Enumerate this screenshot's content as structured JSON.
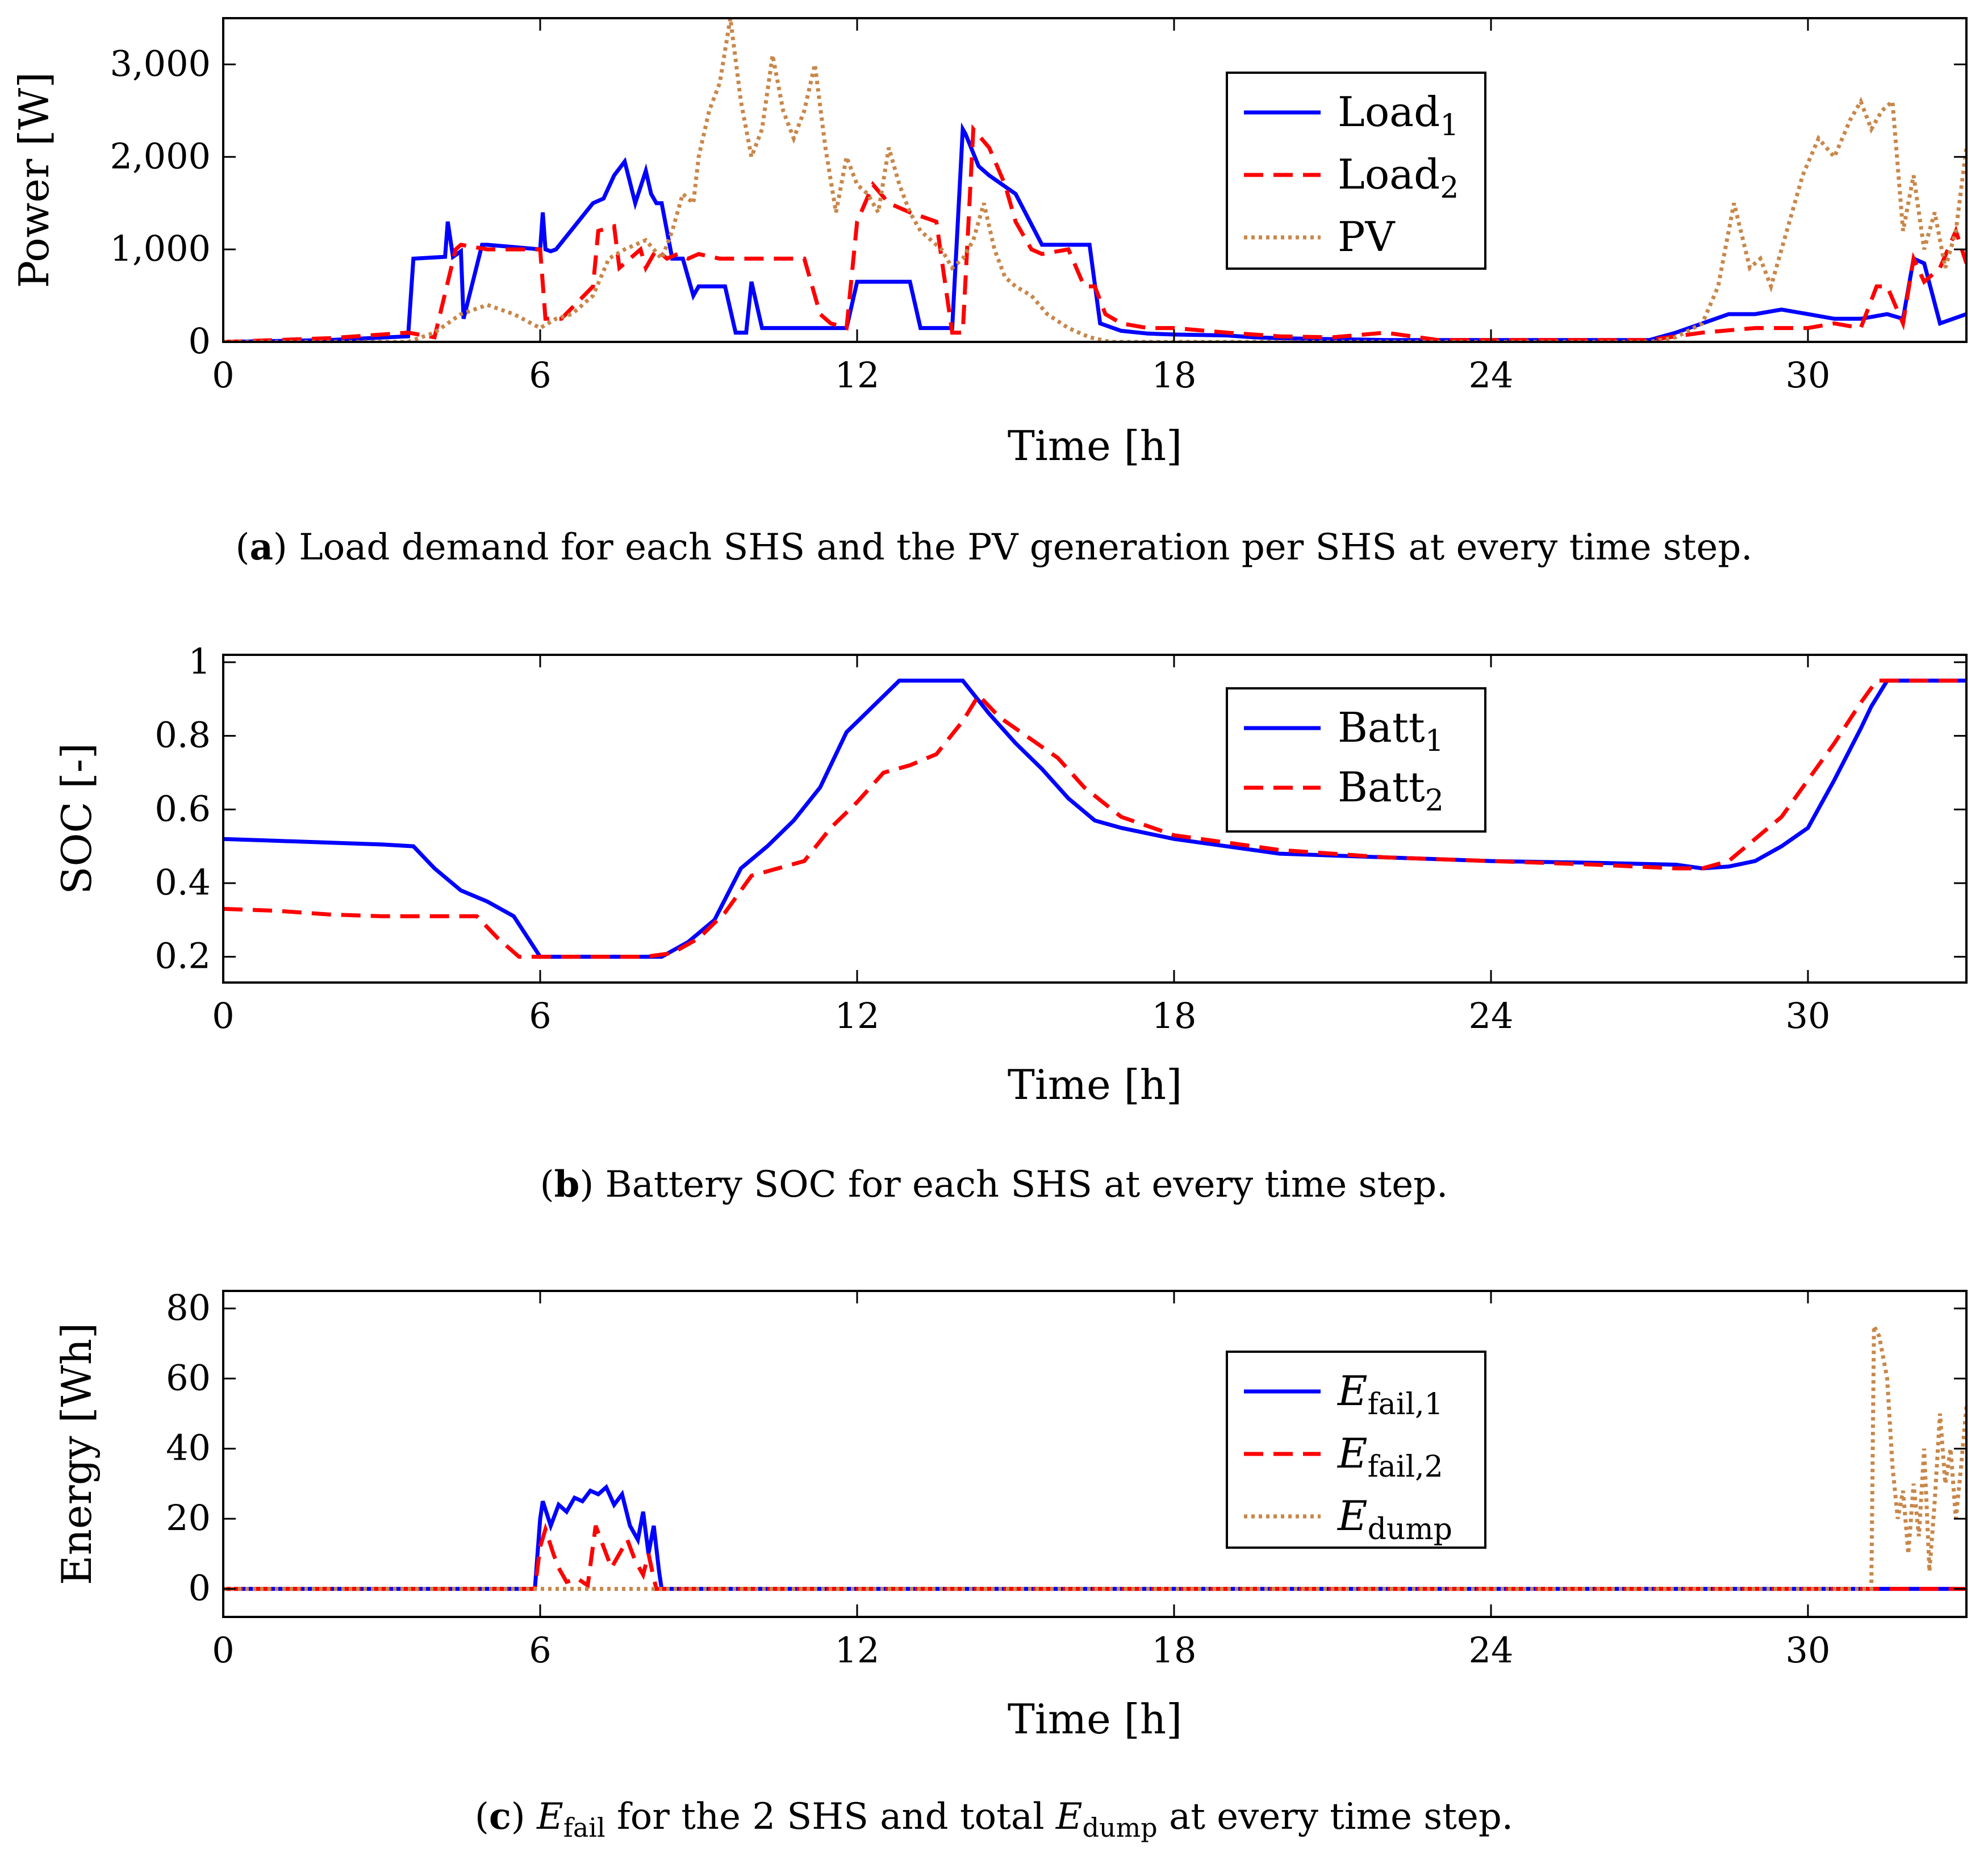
{
  "chart_data": [
    {
      "id": "a",
      "type": "line",
      "xlabel": "Time [h]",
      "ylabel": "Power [W]",
      "xlim": [
        0,
        33
      ],
      "ylim": [
        0,
        3500
      ],
      "xticks": [
        0,
        6,
        12,
        18,
        24,
        30
      ],
      "yticks": [
        0,
        1000,
        2000,
        3000
      ],
      "ytick_labels": [
        "0",
        "1,000",
        "2,000",
        "3,000"
      ],
      "legend_position": "top-right",
      "caption": {
        "label": "a",
        "text": ") Load demand for each SHS and the PV generation per SHS at every time step."
      },
      "series": [
        {
          "name": "Load",
          "sub": "1",
          "color": "#0000ff",
          "style": "solid",
          "x": [
            0,
            2,
            3.5,
            3.6,
            4.2,
            4.25,
            4.35,
            4.5,
            4.55,
            4.9,
            5,
            6,
            6.05,
            6.1,
            6.2,
            6.3,
            7,
            7.2,
            7.4,
            7.6,
            7.8,
            8,
            8.1,
            8.2,
            8.3,
            8.5,
            8.7,
            8.9,
            9,
            9.5,
            9.7,
            9.9,
            10,
            10.2,
            11,
            11.5,
            11.8,
            12,
            12.5,
            13,
            13.2,
            13.8,
            14,
            14.05,
            14.3,
            14.5,
            15,
            15.5,
            16,
            16.2,
            16.4,
            16.6,
            17,
            17.5,
            18,
            19,
            19.5,
            20,
            21,
            22,
            24,
            25,
            26,
            27,
            27.5,
            28,
            28.5,
            29,
            29.5,
            30,
            30.5,
            31,
            31.5,
            31.8,
            32,
            32.2,
            32.5,
            33
          ],
          "y": [
            0,
            20,
            60,
            900,
            920,
            1300,
            920,
            980,
            250,
            1050,
            1050,
            1000,
            1400,
            1000,
            980,
            1000,
            1500,
            1550,
            1800,
            1950,
            1500,
            1850,
            1600,
            1500,
            1500,
            900,
            900,
            500,
            600,
            600,
            100,
            100,
            650,
            150,
            150,
            150,
            150,
            650,
            650,
            650,
            150,
            150,
            2300,
            2250,
            1900,
            1800,
            1600,
            1050,
            1050,
            1050,
            1050,
            200,
            120,
            90,
            80,
            70,
            50,
            40,
            30,
            20,
            20,
            20,
            20,
            20,
            100,
            200,
            300,
            300,
            350,
            300,
            250,
            250,
            300,
            250,
            900,
            850,
            200,
            300
          ]
        },
        {
          "name": "Load",
          "sub": "2",
          "color": "#ff0000",
          "style": "dashed",
          "x": [
            0,
            2,
            3.5,
            4,
            4.4,
            4.5,
            5,
            5.3,
            5.8,
            6,
            6.1,
            6.4,
            7,
            7.1,
            7.4,
            7.5,
            7.9,
            8,
            8.2,
            8.4,
            8.6,
            8.8,
            9,
            9.4,
            10,
            10.5,
            11,
            11.3,
            11.5,
            11.8,
            12,
            12.3,
            12.6,
            13,
            13.5,
            13.8,
            14,
            14.2,
            14.5,
            14.8,
            15,
            15.3,
            15.5,
            16,
            16.3,
            16.5,
            16.7,
            17,
            17.5,
            18,
            19,
            20,
            21,
            22,
            23,
            24,
            25,
            26,
            27,
            28,
            29,
            30,
            30.5,
            31,
            31.3,
            31.5,
            31.8,
            32,
            32.2,
            32.5,
            32.8,
            33
          ],
          "y": [
            0,
            40,
            100,
            50,
            1000,
            1050,
            1000,
            1000,
            1000,
            1000,
            250,
            250,
            600,
            1200,
            1250,
            800,
            1000,
            800,
            1000,
            900,
            950,
            900,
            950,
            900,
            900,
            900,
            900,
            300,
            200,
            150,
            1300,
            1700,
            1500,
            1400,
            1300,
            100,
            100,
            2300,
            2100,
            1700,
            1300,
            1000,
            950,
            1000,
            600,
            600,
            300,
            200,
            150,
            150,
            100,
            60,
            50,
            100,
            20,
            20,
            20,
            20,
            20,
            100,
            150,
            150,
            200,
            150,
            600,
            600,
            200,
            900,
            650,
            800,
            1200,
            850
          ]
        },
        {
          "name": "PV",
          "sub": "",
          "color": "#c8874a",
          "style": "dotted",
          "x": [
            0,
            3,
            3.5,
            4,
            4.5,
            5,
            5.5,
            6,
            6.3,
            6.6,
            7,
            7.3,
            7.6,
            8,
            8.3,
            8.5,
            8.7,
            8.9,
            9,
            9.2,
            9.4,
            9.6,
            9.8,
            10,
            10.2,
            10.4,
            10.6,
            10.8,
            11,
            11.2,
            11.4,
            11.6,
            11.8,
            12,
            12.2,
            12.4,
            12.6,
            12.8,
            13,
            13.2,
            13.4,
            13.6,
            13.8,
            14,
            14.2,
            14.4,
            14.6,
            14.8,
            15,
            15.3,
            15.6,
            16,
            16.4,
            16.8,
            17.2,
            18,
            20,
            24,
            27,
            27.5,
            28,
            28.3,
            28.6,
            28.9,
            29.1,
            29.3,
            29.6,
            29.9,
            30.2,
            30.5,
            30.8,
            31,
            31.2,
            31.4,
            31.6,
            31.8,
            32,
            32.2,
            32.4,
            32.6,
            32.8,
            33
          ],
          "y": [
            0,
            0,
            0,
            100,
            300,
            400,
            300,
            150,
            250,
            300,
            500,
            900,
            1000,
            1100,
            900,
            1200,
            1600,
            1500,
            2000,
            2500,
            2800,
            3500,
            2600,
            2000,
            2300,
            3100,
            2500,
            2200,
            2500,
            3000,
            2100,
            1400,
            2000,
            1700,
            1600,
            1400,
            2100,
            1700,
            1400,
            1200,
            1100,
            1000,
            800,
            900,
            1100,
            1500,
            1000,
            700,
            600,
            500,
            300,
            150,
            50,
            0,
            0,
            0,
            0,
            0,
            0,
            50,
            200,
            600,
            1500,
            800,
            900,
            600,
            1200,
            1800,
            2200,
            2000,
            2400,
            2600,
            2300,
            2500,
            2600,
            1200,
            1800,
            1000,
            1400,
            800,
            1200,
            2100
          ]
        }
      ]
    },
    {
      "id": "b",
      "type": "line",
      "xlabel": "Time [h]",
      "ylabel": "SOC [-]",
      "xlim": [
        0,
        33
      ],
      "ylim": [
        0.13,
        1.02
      ],
      "xticks": [
        0,
        6,
        12,
        18,
        24,
        30
      ],
      "yticks": [
        0.2,
        0.4,
        0.6,
        0.8,
        1
      ],
      "ytick_labels": [
        "0.2",
        "0.4",
        "0.6",
        "0.8",
        "1"
      ],
      "legend_position": "top-right",
      "caption": {
        "label": "b",
        "text": ") Battery SOC for each SHS at every time step."
      },
      "series": [
        {
          "name": "Batt",
          "sub": "1",
          "color": "#0000ff",
          "style": "solid",
          "x": [
            0,
            1,
            2,
            3,
            3.6,
            4,
            4.5,
            5,
            5.5,
            6,
            7,
            8,
            8.3,
            8.8,
            9.3,
            9.8,
            10.3,
            10.8,
            11.3,
            11.8,
            12.3,
            12.8,
            13.3,
            13.8,
            14,
            14.5,
            15,
            15.5,
            16,
            16.5,
            17,
            18,
            19,
            20,
            22,
            24,
            26,
            27.5,
            28,
            28.5,
            29,
            29.5,
            30,
            30.5,
            31,
            31.2,
            31.5,
            32,
            32.5,
            33
          ],
          "y": [
            0.52,
            0.515,
            0.51,
            0.505,
            0.5,
            0.44,
            0.38,
            0.35,
            0.31,
            0.2,
            0.2,
            0.2,
            0.2,
            0.24,
            0.3,
            0.44,
            0.5,
            0.57,
            0.66,
            0.81,
            0.88,
            0.95,
            0.95,
            0.95,
            0.95,
            0.86,
            0.78,
            0.71,
            0.63,
            0.57,
            0.55,
            0.52,
            0.5,
            0.48,
            0.47,
            0.46,
            0.455,
            0.45,
            0.44,
            0.445,
            0.46,
            0.5,
            0.55,
            0.68,
            0.82,
            0.88,
            0.95,
            0.95,
            0.95,
            0.95
          ]
        },
        {
          "name": "Batt",
          "sub": "2",
          "color": "#ff0000",
          "style": "dashed",
          "x": [
            0,
            1,
            2,
            3,
            4,
            4.8,
            5.2,
            5.6,
            6,
            7,
            8,
            8.5,
            9,
            9.5,
            10,
            10.5,
            11,
            11.5,
            12,
            12.5,
            13,
            13.5,
            14,
            14.3,
            14.7,
            15.2,
            15.8,
            16.3,
            17,
            18,
            19,
            20,
            22,
            24,
            26,
            27.5,
            28,
            28.5,
            29,
            29.5,
            30,
            30.5,
            31,
            31.3,
            31.5,
            32,
            32.5,
            33
          ],
          "y": [
            0.33,
            0.325,
            0.315,
            0.31,
            0.31,
            0.31,
            0.25,
            0.2,
            0.2,
            0.2,
            0.2,
            0.21,
            0.25,
            0.32,
            0.42,
            0.44,
            0.46,
            0.55,
            0.62,
            0.7,
            0.72,
            0.75,
            0.84,
            0.91,
            0.85,
            0.8,
            0.74,
            0.66,
            0.58,
            0.53,
            0.51,
            0.49,
            0.47,
            0.46,
            0.45,
            0.44,
            0.44,
            0.46,
            0.52,
            0.58,
            0.68,
            0.78,
            0.89,
            0.95,
            0.95,
            0.95,
            0.95,
            0.95
          ]
        }
      ]
    },
    {
      "id": "c",
      "type": "line",
      "xlabel": "Time [h]",
      "ylabel": "Energy [Wh]",
      "xlim": [
        0,
        33
      ],
      "ylim": [
        -8,
        85
      ],
      "xticks": [
        0,
        6,
        12,
        18,
        24,
        30
      ],
      "yticks": [
        0,
        20,
        40,
        60,
        80
      ],
      "ytick_labels": [
        "0",
        "20",
        "40",
        "60",
        "80"
      ],
      "legend_position": "top-right",
      "caption": {
        "label": "c",
        "text": "for the 2 SHS and total",
        "tail": "at every time step."
      },
      "series": [
        {
          "name": "E",
          "sub": "fail,1",
          "color": "#0000ff",
          "style": "solid",
          "x": [
            0,
            5.9,
            6,
            6.05,
            6.2,
            6.35,
            6.5,
            6.65,
            6.8,
            6.95,
            7.1,
            7.25,
            7.4,
            7.55,
            7.7,
            7.85,
            7.95,
            8.05,
            8.15,
            8.25,
            8.3,
            33
          ],
          "y": [
            0,
            0,
            20,
            25,
            18,
            24,
            22,
            26,
            25,
            28,
            27,
            29,
            24,
            27,
            18,
            14,
            22,
            10,
            18,
            5,
            0,
            0
          ]
        },
        {
          "name": "E",
          "sub": "fail,2",
          "color": "#ff0000",
          "style": "dashed",
          "x": [
            0,
            5.9,
            6,
            6.1,
            6.25,
            6.35,
            6.5,
            6.7,
            6.9,
            7.05,
            7.2,
            7.35,
            7.5,
            7.65,
            7.8,
            7.95,
            8.05,
            8.15,
            8.2,
            33
          ],
          "y": [
            0,
            0,
            12,
            17,
            10,
            6,
            2,
            3,
            1,
            18,
            12,
            6,
            10,
            14,
            8,
            4,
            10,
            3,
            0,
            0
          ]
        },
        {
          "name": "E",
          "sub": "dump",
          "color": "#c8874a",
          "style": "dotted",
          "x": [
            0,
            31.2,
            31.25,
            31.35,
            31.5,
            31.6,
            31.7,
            31.8,
            31.9,
            32,
            32.1,
            32.2,
            32.3,
            32.4,
            32.5,
            32.6,
            32.7,
            32.8,
            32.9,
            33
          ],
          "y": [
            0,
            0,
            75,
            72,
            60,
            35,
            20,
            28,
            10,
            30,
            15,
            40,
            5,
            25,
            50,
            30,
            40,
            20,
            35,
            52
          ]
        }
      ]
    }
  ],
  "caption_c": {
    "e_label": "E",
    "e_fail_sub": "fail",
    "e_dump_sub": "dump"
  }
}
